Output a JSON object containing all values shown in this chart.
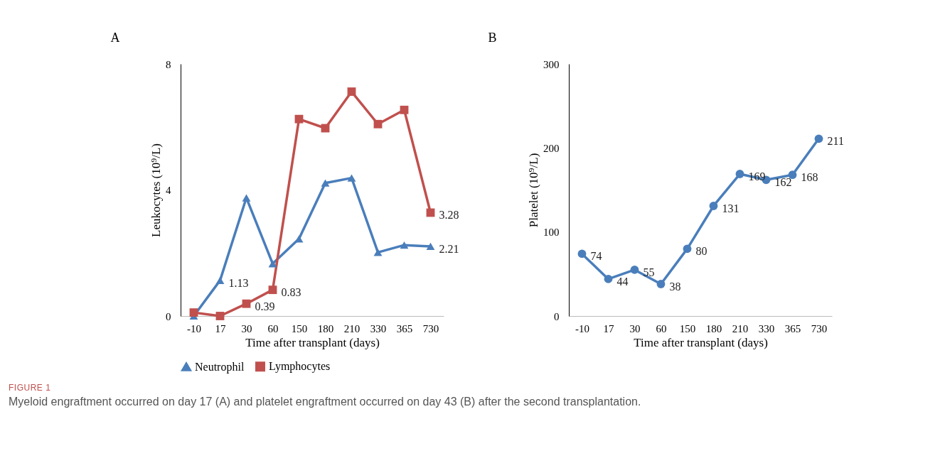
{
  "chart_data": [
    {
      "type": "line",
      "title": "A",
      "xlabel": "Time after transplant (days)",
      "ylabel": "Leukocytes (10⁹/L)",
      "categories": [
        "-10",
        "17",
        "30",
        "60",
        "150",
        "180",
        "210",
        "330",
        "365",
        "730"
      ],
      "ylim": [
        0,
        8
      ],
      "yticks": [
        0,
        4,
        8
      ],
      "grid": false,
      "legend": "bottom",
      "series": [
        {
          "name": "Neutrophil",
          "color": "#4a7ebb",
          "marker": "triangle",
          "values": [
            0.0,
            1.13,
            3.75,
            1.66,
            2.45,
            4.22,
            4.38,
            2.02,
            2.25,
            2.21
          ],
          "value_labels": [
            null,
            "1.13",
            null,
            null,
            null,
            null,
            null,
            null,
            null,
            "2.21"
          ]
        },
        {
          "name": "Lymphocytes",
          "color": "#c0504d",
          "marker": "square",
          "values": [
            0.11,
            0.0,
            0.39,
            0.83,
            6.25,
            5.96,
            7.12,
            6.09,
            6.54,
            3.28
          ],
          "value_labels": [
            null,
            null,
            "0.39",
            "0.83",
            null,
            null,
            null,
            null,
            null,
            "3.28"
          ]
        }
      ]
    },
    {
      "type": "line",
      "title": "B",
      "xlabel": "Time after transplant (days)",
      "ylabel": "Platelet (10⁹/L)",
      "categories": [
        "-10",
        "17",
        "30",
        "60",
        "150",
        "180",
        "210",
        "330",
        "365",
        "730"
      ],
      "ylim": [
        0,
        300
      ],
      "yticks": [
        0,
        100,
        200,
        300
      ],
      "grid": false,
      "data_labels": true,
      "marker": "circle",
      "series": [
        {
          "color": "#4a7ebb",
          "values": [
            74,
            44,
            55,
            38,
            80,
            131,
            169,
            162,
            168,
            211
          ]
        }
      ],
      "annotations": [
        "FIGURE 1",
        "Myeloid engraftment occurred on day 17 (A) and platelet engraftment occurred on day 43 (B) after the second transplantation."
      ]
    }
  ]
}
